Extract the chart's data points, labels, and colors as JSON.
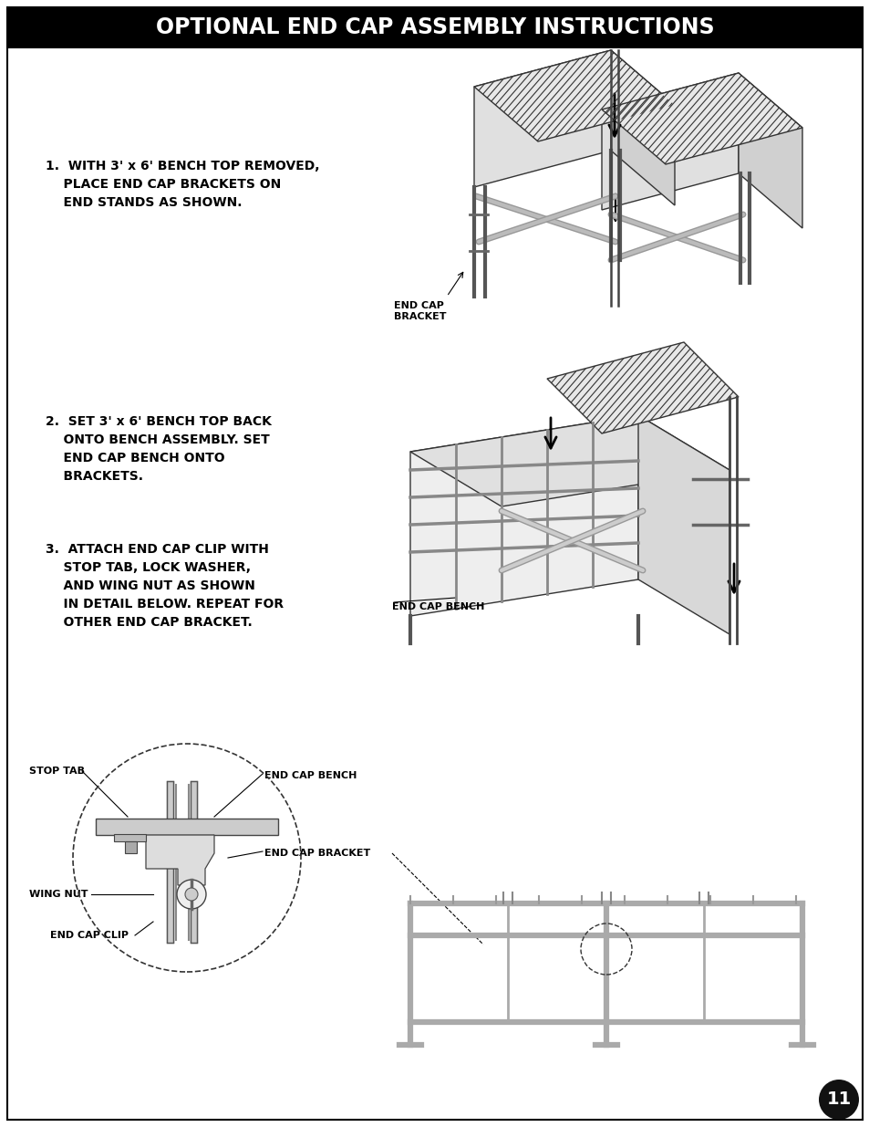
{
  "title": "OPTIONAL END CAP ASSEMBLY INSTRUCTIONS",
  "title_bg": "#000000",
  "title_color": "#ffffff",
  "page_bg": "#ffffff",
  "border_color": "#000000",
  "text_color": "#000000",
  "page_number": "11",
  "step1_line1": "1.  WITH 3' x 6' BENCH TOP REMOVED,",
  "step1_line2": "    PLACE END CAP BRACKETS ON",
  "step1_line3": "    END STANDS AS SHOWN.",
  "step2_line1": "2.  SET 3' x 6' BENCH TOP BACK",
  "step2_line2": "    ONTO BENCH ASSEMBLY. SET",
  "step2_line3": "    END CAP BENCH ONTO",
  "step2_line4": "    BRACKETS.",
  "step3_line1": "3.  ATTACH END CAP CLIP WITH",
  "step3_line2": "    STOP TAB, LOCK WASHER,",
  "step3_line3": "    AND WING NUT AS SHOWN",
  "step3_line4": "    IN DETAIL BELOW. REPEAT FOR",
  "step3_line5": "    OTHER END CAP BRACKET.",
  "label_end_cap_bracket": "END CAP\nBRACKET",
  "label_end_cap_bench_lower": "END CAP BENCH",
  "label_stop_tab": "STOP TAB",
  "label_end_cap_bench2": "END CAP BENCH",
  "label_end_cap_bracket2": "END CAP BRACKET",
  "label_wing_nut": "WING NUT",
  "label_end_cap_clip": "END CAP CLIP",
  "font_size_title": 17,
  "font_size_step": 10,
  "font_size_label": 8
}
